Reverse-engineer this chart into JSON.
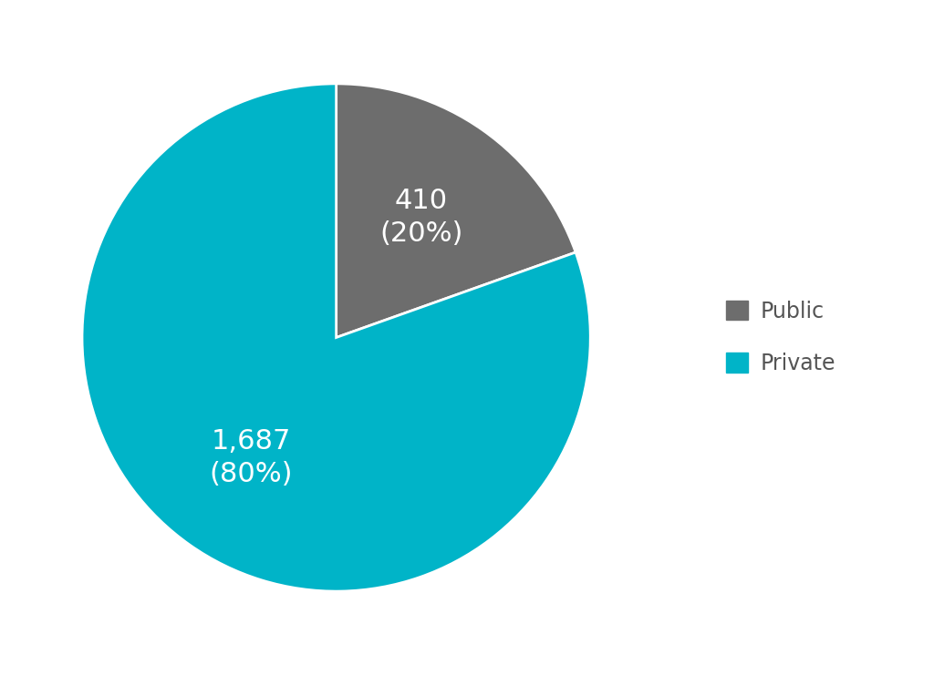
{
  "slices": [
    {
      "label": "Public",
      "value": 410,
      "percentage": 20,
      "color": "#6d6d6d"
    },
    {
      "label": "Private",
      "value": 1687,
      "percentage": 80,
      "color": "#00b4c8"
    }
  ],
  "label_texts": [
    "410\n(20%)",
    "1,687\n(80%)"
  ],
  "label_colors": [
    "white",
    "white"
  ],
  "label_fontsize": 22,
  "legend_fontsize": 17,
  "background_color": "#ffffff",
  "startangle": 90,
  "legend_text_color": "#555555"
}
